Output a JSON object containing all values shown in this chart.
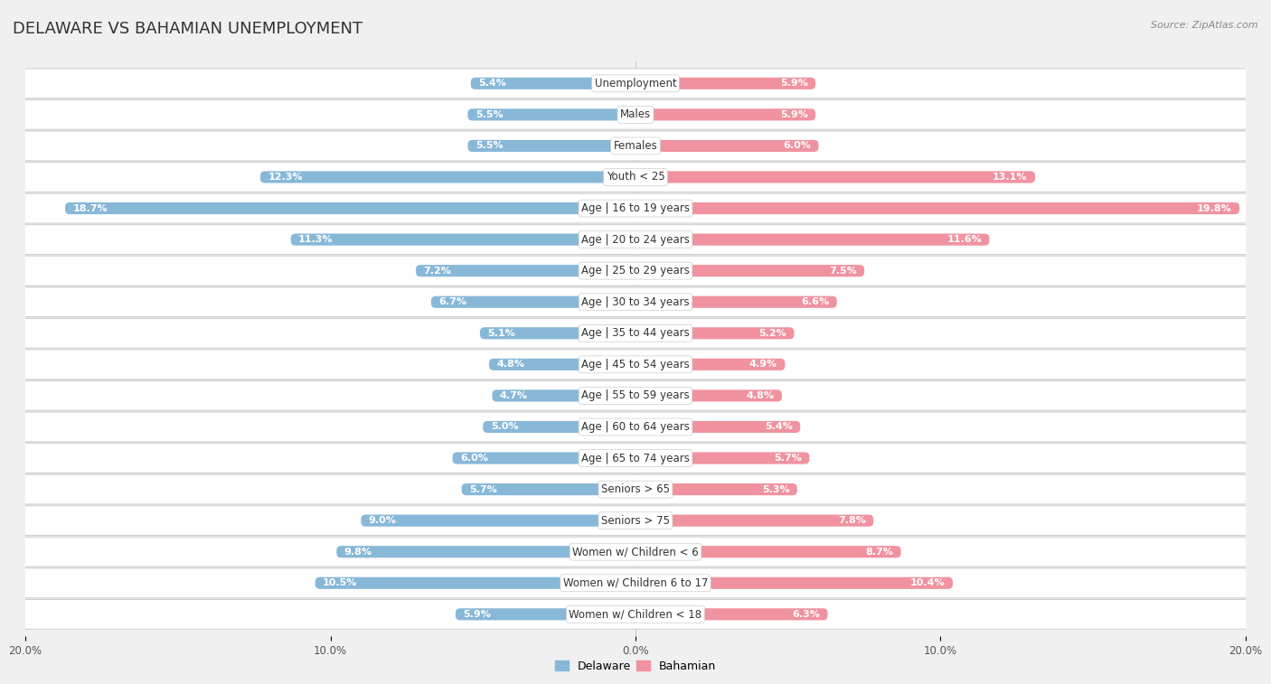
{
  "title": "DELAWARE VS BAHAMIAN UNEMPLOYMENT",
  "source": "Source: ZipAtlas.com",
  "categories": [
    "Unemployment",
    "Males",
    "Females",
    "Youth < 25",
    "Age | 16 to 19 years",
    "Age | 20 to 24 years",
    "Age | 25 to 29 years",
    "Age | 30 to 34 years",
    "Age | 35 to 44 years",
    "Age | 45 to 54 years",
    "Age | 55 to 59 years",
    "Age | 60 to 64 years",
    "Age | 65 to 74 years",
    "Seniors > 65",
    "Seniors > 75",
    "Women w/ Children < 6",
    "Women w/ Children 6 to 17",
    "Women w/ Children < 18"
  ],
  "delaware": [
    5.4,
    5.5,
    5.5,
    12.3,
    18.7,
    11.3,
    7.2,
    6.7,
    5.1,
    4.8,
    4.7,
    5.0,
    6.0,
    5.7,
    9.0,
    9.8,
    10.5,
    5.9
  ],
  "bahamian": [
    5.9,
    5.9,
    6.0,
    13.1,
    19.8,
    11.6,
    7.5,
    6.6,
    5.2,
    4.9,
    4.8,
    5.4,
    5.7,
    5.3,
    7.8,
    8.7,
    10.4,
    6.3
  ],
  "delaware_color": "#88b8d8",
  "bahamian_color": "#f0929f",
  "xlim": 20.0,
  "background_color": "#f0f0f0",
  "row_bg_color": "#ffffff",
  "row_border_color": "#d0d0d0",
  "title_fontsize": 13,
  "label_fontsize": 8.5,
  "value_fontsize": 8,
  "axis_fontsize": 8.5,
  "legend_fontsize": 9
}
